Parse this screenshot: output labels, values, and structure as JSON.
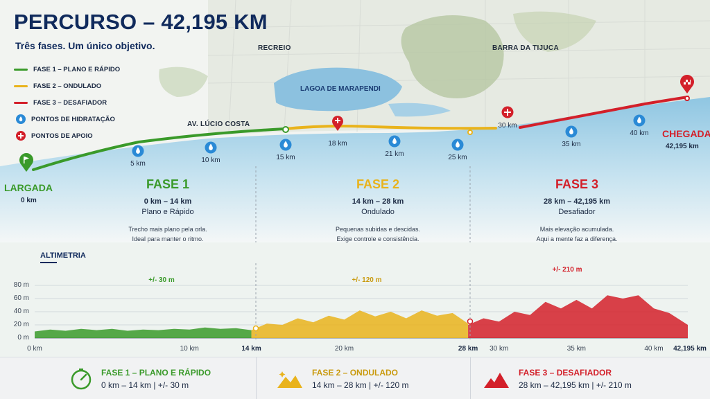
{
  "title": "PERCURSO – 42,195 KM",
  "subtitle": "Três fases. Um único objetivo.",
  "legend": [
    {
      "label": "FASE 1 – PLANO E RÁPIDO",
      "color": "#3a9a2a",
      "kind": "line"
    },
    {
      "label": "FASE 2 – ONDULADO",
      "color": "#e9b31c",
      "kind": "line"
    },
    {
      "label": "FASE 3 – DESAFIADOR",
      "color": "#d3202a",
      "kind": "line"
    },
    {
      "label": "PONTOS DE HIDRATAÇÃO",
      "color": "#2a8ad6",
      "kind": "drop-icon"
    },
    {
      "label": "PONTOS DE APOIO",
      "color": "#d3202a",
      "kind": "cross-icon"
    }
  ],
  "map": {
    "places": {
      "recreio": "RECREIO",
      "barra": "BARRA DA TIJUCA",
      "lagoa": "LAGOA DE MARAPENDI",
      "avenida": "AV. LÚCIO COSTA"
    },
    "start": {
      "name": "LARGADA",
      "km": "0 km"
    },
    "finish": {
      "name": "CHEGADA",
      "km": "42,195 km"
    },
    "hydration_km": [
      "5 km",
      "10 km",
      "15 km",
      "21 km",
      "25 km",
      "35 km",
      "40 km"
    ],
    "support_km": [
      "18 km",
      "30 km"
    ]
  },
  "phases": [
    {
      "title": "FASE 1",
      "range": "0 km – 14 km",
      "kind": "Plano e Rápido",
      "desc1": "Trecho mais plano pela orla.",
      "desc2": "Ideal para manter o ritmo.",
      "color": "#3a9a2a"
    },
    {
      "title": "FASE 2",
      "range": "14 km – 28 km",
      "kind": "Ondulado",
      "desc1": "Pequenas subidas e descidas.",
      "desc2": "Exige controle e consistência.",
      "color": "#e9b31c"
    },
    {
      "title": "FASE 3",
      "range": "28 km – 42,195 km",
      "kind": "Desafiador",
      "desc1": "Mais elevação acumulada.",
      "desc2": "Aqui a mente faz a diferença.",
      "color": "#d3202a"
    }
  ],
  "altimetry": {
    "title": "ALTIMETRIA",
    "yticks": [
      "80 m",
      "60 m",
      "40 m",
      "20 m",
      "0 m"
    ],
    "xticks": [
      "0 km",
      "10 km",
      "14 km",
      "20 km",
      "28 km",
      "30 km",
      "35 km",
      "40 km",
      "42,195 km"
    ],
    "bold_xticks": [
      "14 km",
      "28 km",
      "42,195 km"
    ],
    "elevation_labels": [
      "+/- 30 m",
      "+/- 120 m",
      "+/- 210 m"
    ]
  },
  "chart_data": {
    "type": "area",
    "title": "ALTIMETRIA",
    "xlabel": "",
    "ylabel": "",
    "xlim": [
      0,
      42.195
    ],
    "ylim": [
      0,
      80
    ],
    "grid": true,
    "series": [
      {
        "x": [
          0,
          1,
          2,
          3,
          4,
          5,
          6,
          7,
          8,
          9,
          10,
          11,
          12,
          13,
          14
        ],
        "y": [
          10,
          13,
          11,
          14,
          12,
          14,
          11,
          13,
          12,
          14,
          13,
          16,
          14,
          15,
          12
        ]
      },
      {
        "x": [
          14,
          15,
          16,
          17,
          18,
          19,
          20,
          21,
          22,
          23,
          24,
          25,
          26,
          27,
          28
        ],
        "y": [
          12,
          22,
          20,
          30,
          24,
          34,
          28,
          42,
          33,
          40,
          30,
          42,
          34,
          38,
          22
        ]
      },
      {
        "x": [
          28,
          29,
          30,
          31,
          32,
          33,
          34,
          35,
          36,
          37,
          38,
          39,
          40,
          41,
          42.195
        ],
        "y": [
          20,
          30,
          25,
          40,
          35,
          55,
          45,
          58,
          45,
          65,
          60,
          65,
          45,
          38,
          20
        ]
      }
    ]
  },
  "bottom": [
    {
      "title": "FASE 1 – PLANO E RÁPIDO",
      "detail": "0 km – 14 km | +/- 30 m",
      "icon": "speedometer-icon",
      "color": "#3a9a2a"
    },
    {
      "title": "FASE 2 – ONDULADO",
      "detail": "14 km – 28 km | +/- 120 m",
      "icon": "hills-icon",
      "color": "#e9b31c"
    },
    {
      "title": "FASE 3 – DESAFIADOR",
      "detail": "28 km – 42,195 km | +/- 210 m",
      "icon": "mountain-icon",
      "color": "#d3202a"
    }
  ]
}
